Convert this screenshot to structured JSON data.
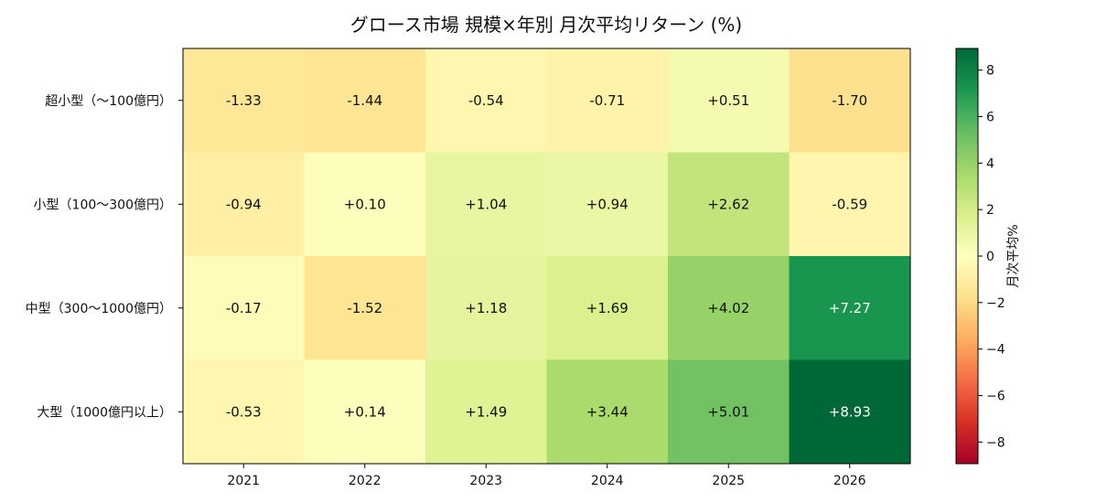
{
  "chart_data": {
    "type": "heatmap",
    "title": "グロース市場 規模×年別 月次平均リターン (%)",
    "x_categories": [
      "2021",
      "2022",
      "2023",
      "2024",
      "2025",
      "2026"
    ],
    "y_categories": [
      "超小型（～100億円）",
      "小型（100～300億円）",
      "中型（300～1000億円）",
      "大型（1000億円以上）"
    ],
    "values": [
      [
        -1.33,
        -1.44,
        -0.54,
        -0.71,
        0.51,
        -1.7
      ],
      [
        -0.94,
        0.1,
        1.04,
        0.94,
        2.62,
        -0.59
      ],
      [
        -0.17,
        -1.52,
        1.18,
        1.69,
        4.02,
        7.27
      ],
      [
        -0.53,
        0.14,
        1.49,
        3.44,
        5.01,
        8.93
      ]
    ],
    "cell_labels": [
      [
        "-1.33",
        "-1.44",
        "-0.54",
        "-0.71",
        "+0.51",
        "-1.70"
      ],
      [
        "-0.94",
        "+0.10",
        "+1.04",
        "+0.94",
        "+2.62",
        "-0.59"
      ],
      [
        "-0.17",
        "-1.52",
        "+1.18",
        "+1.69",
        "+4.02",
        "+7.27"
      ],
      [
        "-0.53",
        "+0.14",
        "+1.49",
        "+3.44",
        "+5.01",
        "+8.93"
      ]
    ],
    "colormap": "RdYlGn",
    "colorbar": {
      "label": "月次平均%",
      "range": [
        -8.93,
        8.93
      ],
      "ticks": [
        -8,
        -6,
        -4,
        -2,
        0,
        2,
        4,
        6,
        8
      ],
      "tick_labels": [
        "−8",
        "−6",
        "−4",
        "−2",
        "0",
        "2",
        "4",
        "6",
        "8"
      ]
    }
  }
}
